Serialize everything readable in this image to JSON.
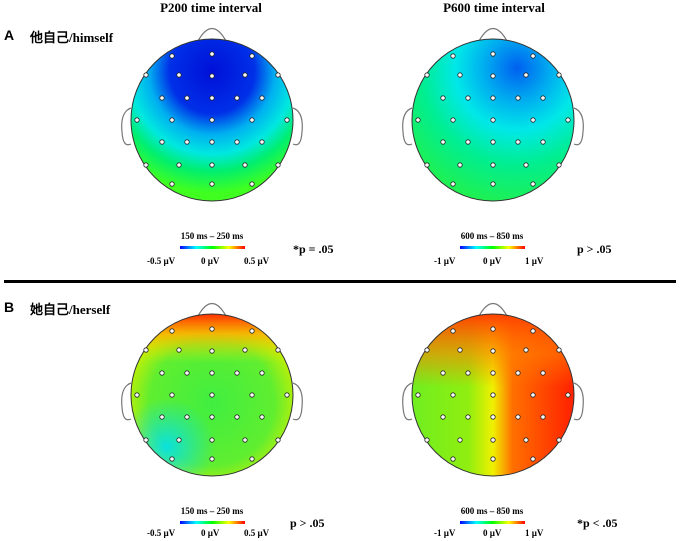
{
  "columns": [
    "P200 time interval",
    "P600 time interval"
  ],
  "panels": [
    {
      "letter": "A",
      "label": "他自己/himself",
      "maps": [
        {
          "range": "150 ms – 250 ms",
          "min": "-0.5 µV",
          "mid": "0 µV",
          "max": "0.5 µV",
          "stat": "*p = .05",
          "pattern": "frontal-negative-strong"
        },
        {
          "range": "600 ms – 850 ms",
          "min": "-1 µV",
          "mid": "0 µV",
          "max": "1 µV",
          "stat": "p > .05",
          "pattern": "frontal-negative-mild"
        }
      ]
    },
    {
      "letter": "B",
      "label": "她自己/herself",
      "maps": [
        {
          "range": "150 ms – 250 ms",
          "min": "-0.5 µV",
          "mid": "0 µV",
          "max": "0.5 µV",
          "stat": "p > .05",
          "pattern": "frontal-positive-mild"
        },
        {
          "range": "600 ms – 850 ms",
          "min": "-1 µV",
          "mid": "0 µV",
          "max": "1 µV",
          "stat": "*p < .05",
          "pattern": "right-positive-strong"
        }
      ]
    }
  ],
  "colormap": [
    "#0000ff",
    "#00ffff",
    "#00ff00",
    "#ffff00",
    "#ff0000"
  ]
}
